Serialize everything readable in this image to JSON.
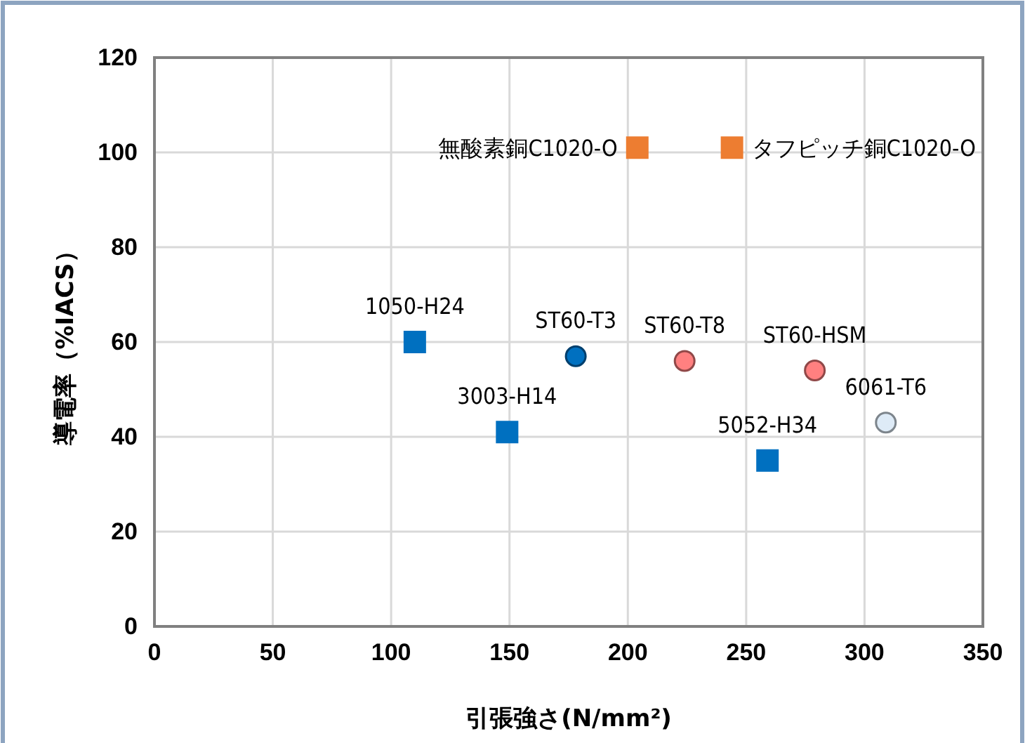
{
  "chart_data": {
    "type": "scatter",
    "xlabel": "引張強さ(N/mm²)",
    "ylabel": "導電率（%IACS）",
    "xlim": [
      0,
      350
    ],
    "xticks": [
      0,
      50,
      100,
      150,
      200,
      250,
      300,
      350
    ],
    "ylim": [
      0,
      120
    ],
    "yticks": [
      0,
      20,
      40,
      60,
      80,
      100,
      120
    ],
    "grid": true,
    "series": [
      {
        "name": "1050-H24",
        "color": "#0070c0",
        "marker": "square",
        "x": [
          110
        ],
        "values": [
          60
        ]
      },
      {
        "name": "3003-H14",
        "color": "#0070c0",
        "marker": "square",
        "x": [
          149
        ],
        "values": [
          41
        ]
      },
      {
        "name": "ST60-T3",
        "color": "#0070c0",
        "marker": "circle",
        "x": [
          178
        ],
        "values": [
          57
        ]
      },
      {
        "name": "ST60-T8",
        "color": "#ff8080",
        "marker": "circle",
        "x": [
          224
        ],
        "values": [
          56
        ]
      },
      {
        "name": "ST60-HSM",
        "color": "#ff8080",
        "marker": "circle",
        "x": [
          279
        ],
        "values": [
          54
        ]
      },
      {
        "name": "5052-H34",
        "color": "#0070c0",
        "marker": "square",
        "x": [
          259
        ],
        "values": [
          35
        ]
      },
      {
        "name": "6061-T6",
        "color": "#deebf7",
        "marker": "circle",
        "x": [
          309
        ],
        "values": [
          43
        ]
      },
      {
        "name": "無酸素銅C1020-O",
        "color": "#ed7d31",
        "marker": "square",
        "x": [
          204
        ],
        "values": [
          101
        ]
      },
      {
        "name": "タフピッチ銅C1020-O",
        "color": "#ed7d31",
        "marker": "square",
        "x": [
          244
        ],
        "values": [
          101
        ]
      }
    ]
  }
}
